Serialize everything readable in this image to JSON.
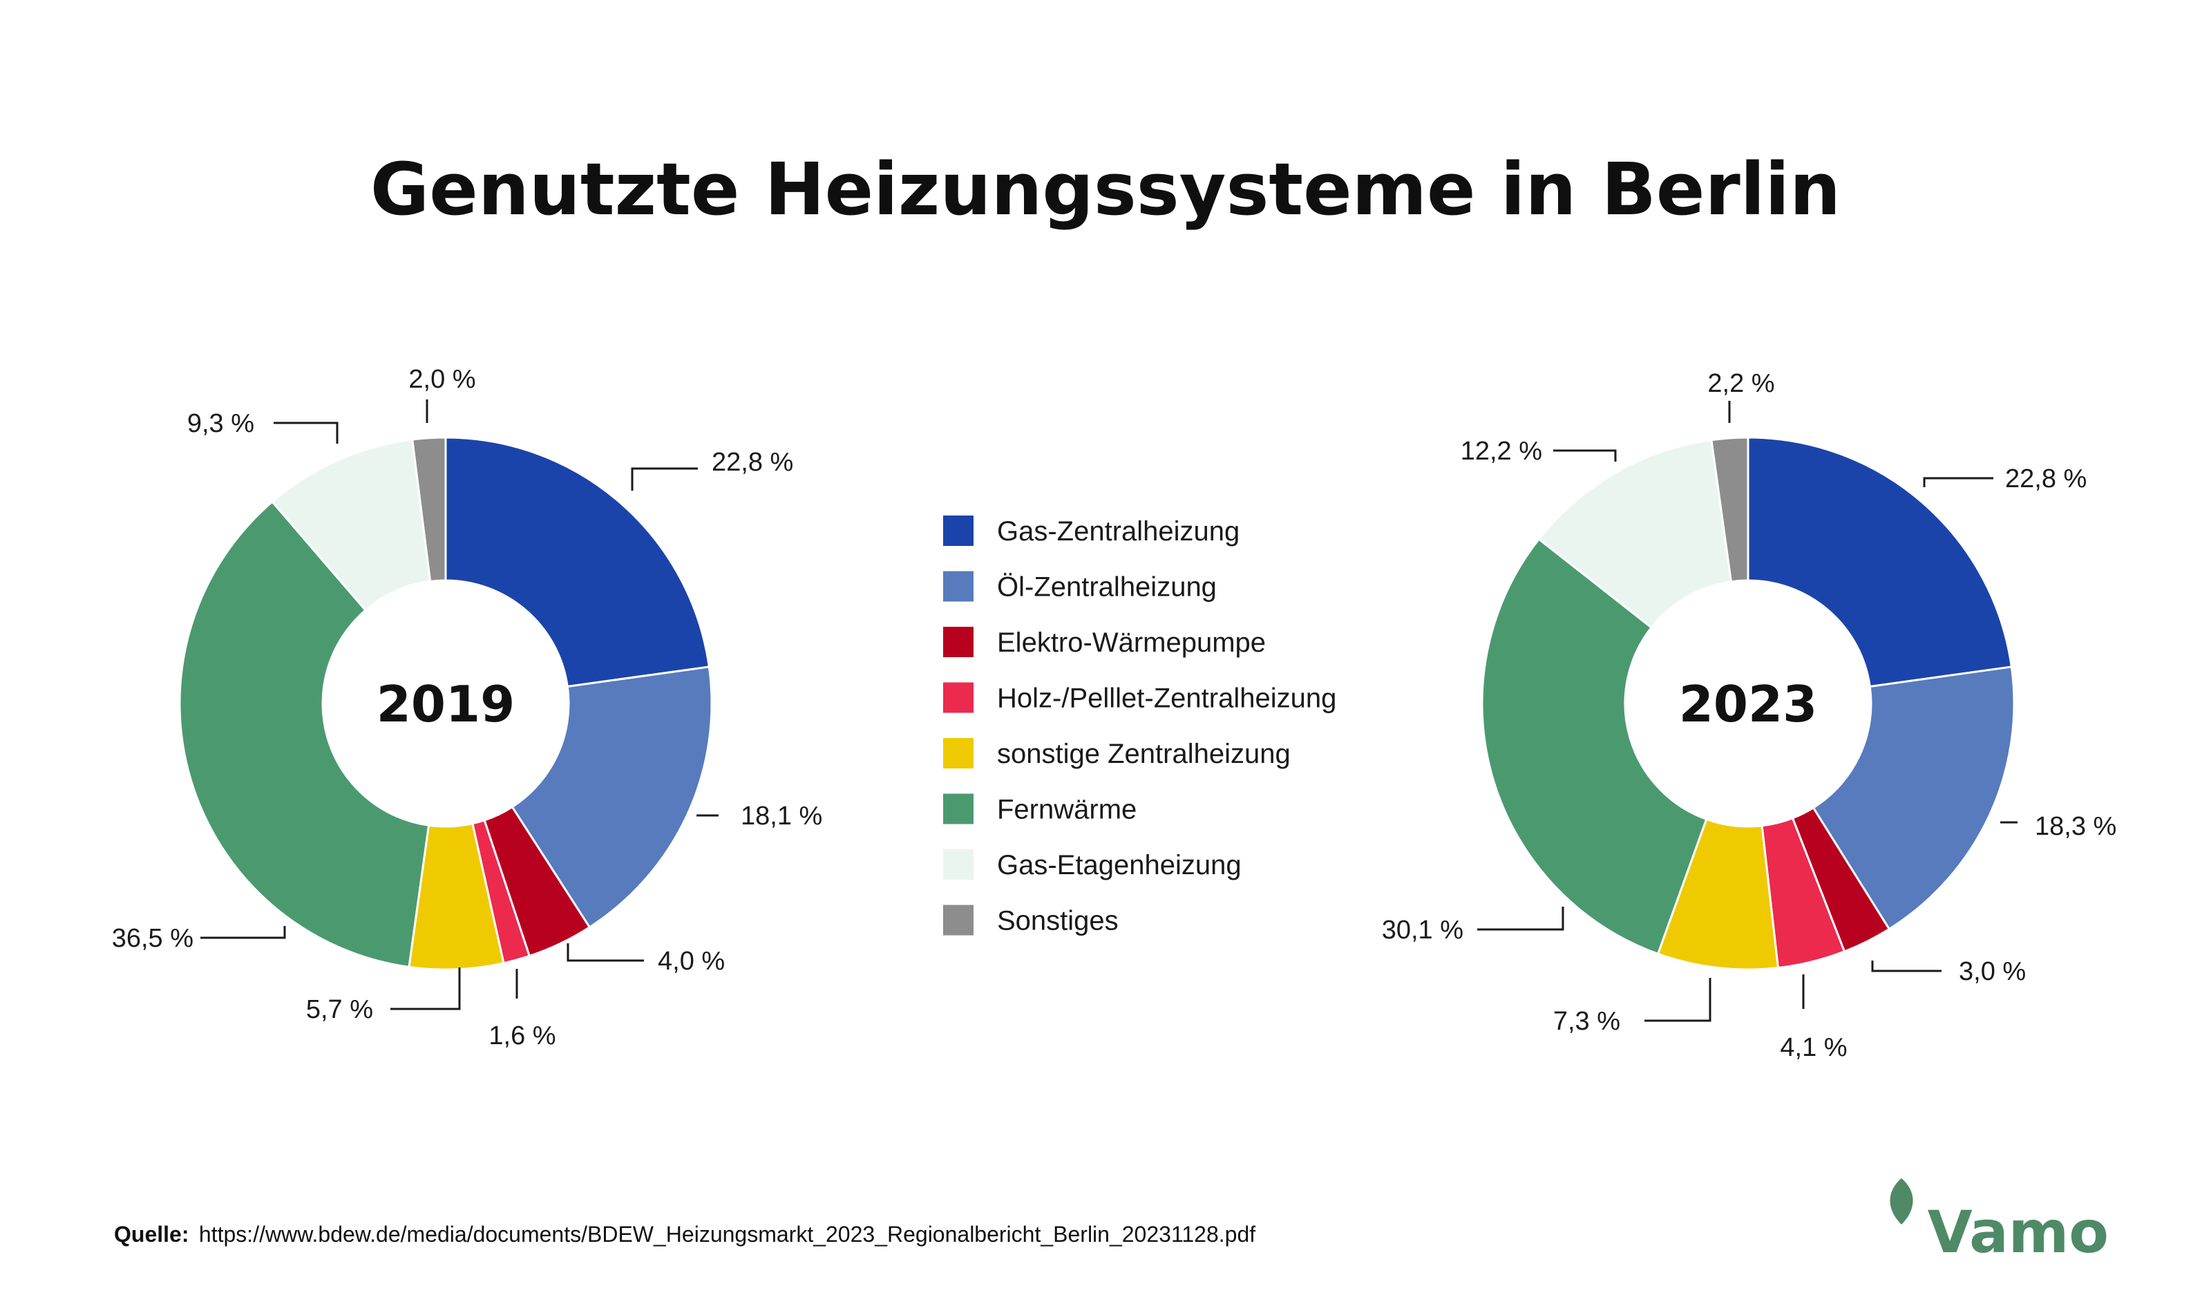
{
  "title": "Genutzte Heizungssysteme in Berlin",
  "legend": [
    {
      "label": "Gas-Zentralheizung",
      "color": "#1b44aa"
    },
    {
      "label": "Öl-Zentralheizung",
      "color": "#577bbd"
    },
    {
      "label": "Elektro-Wärmepumpe",
      "color": "#b8001f"
    },
    {
      "label": "Holz-/Pelllet-Zentralheizung",
      "color": "#eb2a4e"
    },
    {
      "label": "sonstige Zentralheizung",
      "color": "#efca00"
    },
    {
      "label": "Fernwärme",
      "color": "#4b9a6f"
    },
    {
      "label": "Gas-Etagenheizung",
      "color": "#eaf5ef"
    },
    {
      "label": "Sonstiges",
      "color": "#8d8d8d"
    }
  ],
  "chart_data": [
    {
      "type": "pie",
      "center_label": "2019",
      "categories": [
        "Gas-Zentralheizung",
        "Öl-Zentralheizung",
        "Elektro-Wärmepumpe",
        "Holz-/Pelllet-Zentralheizung",
        "sonstige Zentralheizung",
        "Fernwärme",
        "Gas-Etagenheizung",
        "Sonstiges"
      ],
      "values": [
        22.8,
        18.1,
        4.0,
        1.6,
        5.7,
        36.5,
        9.3,
        2.0
      ],
      "labels": [
        "22,8 %",
        "18,1 %",
        "4,0 %",
        "1,6 %",
        "5,7 %",
        "36,5 %",
        "9,3 %",
        "2,0 %"
      ],
      "unit": "%",
      "legend_position": "center"
    },
    {
      "type": "pie",
      "center_label": "2023",
      "categories": [
        "Gas-Zentralheizung",
        "Öl-Zentralheizung",
        "Elektro-Wärmepumpe",
        "Holz-/Pelllet-Zentralheizung",
        "sonstige Zentralheizung",
        "Fernwärme",
        "Gas-Etagenheizung",
        "Sonstiges"
      ],
      "values": [
        22.8,
        18.3,
        3.0,
        4.1,
        7.3,
        30.1,
        12.2,
        2.2
      ],
      "labels": [
        "22,8 %",
        "18,3 %",
        "3,0 %",
        "4,1 %",
        "7,3 %",
        "30,1 %",
        "12,2 %",
        "2,2 %"
      ],
      "unit": "%",
      "legend_position": "center"
    }
  ],
  "source": {
    "label": "Quelle:",
    "url": "https://www.bdew.de/media/documents/BDEW_Heizungsmarkt_2023_Regionalbericht_Berlin_20231128.pdf"
  },
  "logo": {
    "text": "Vamo",
    "color": "#4f8a67"
  }
}
